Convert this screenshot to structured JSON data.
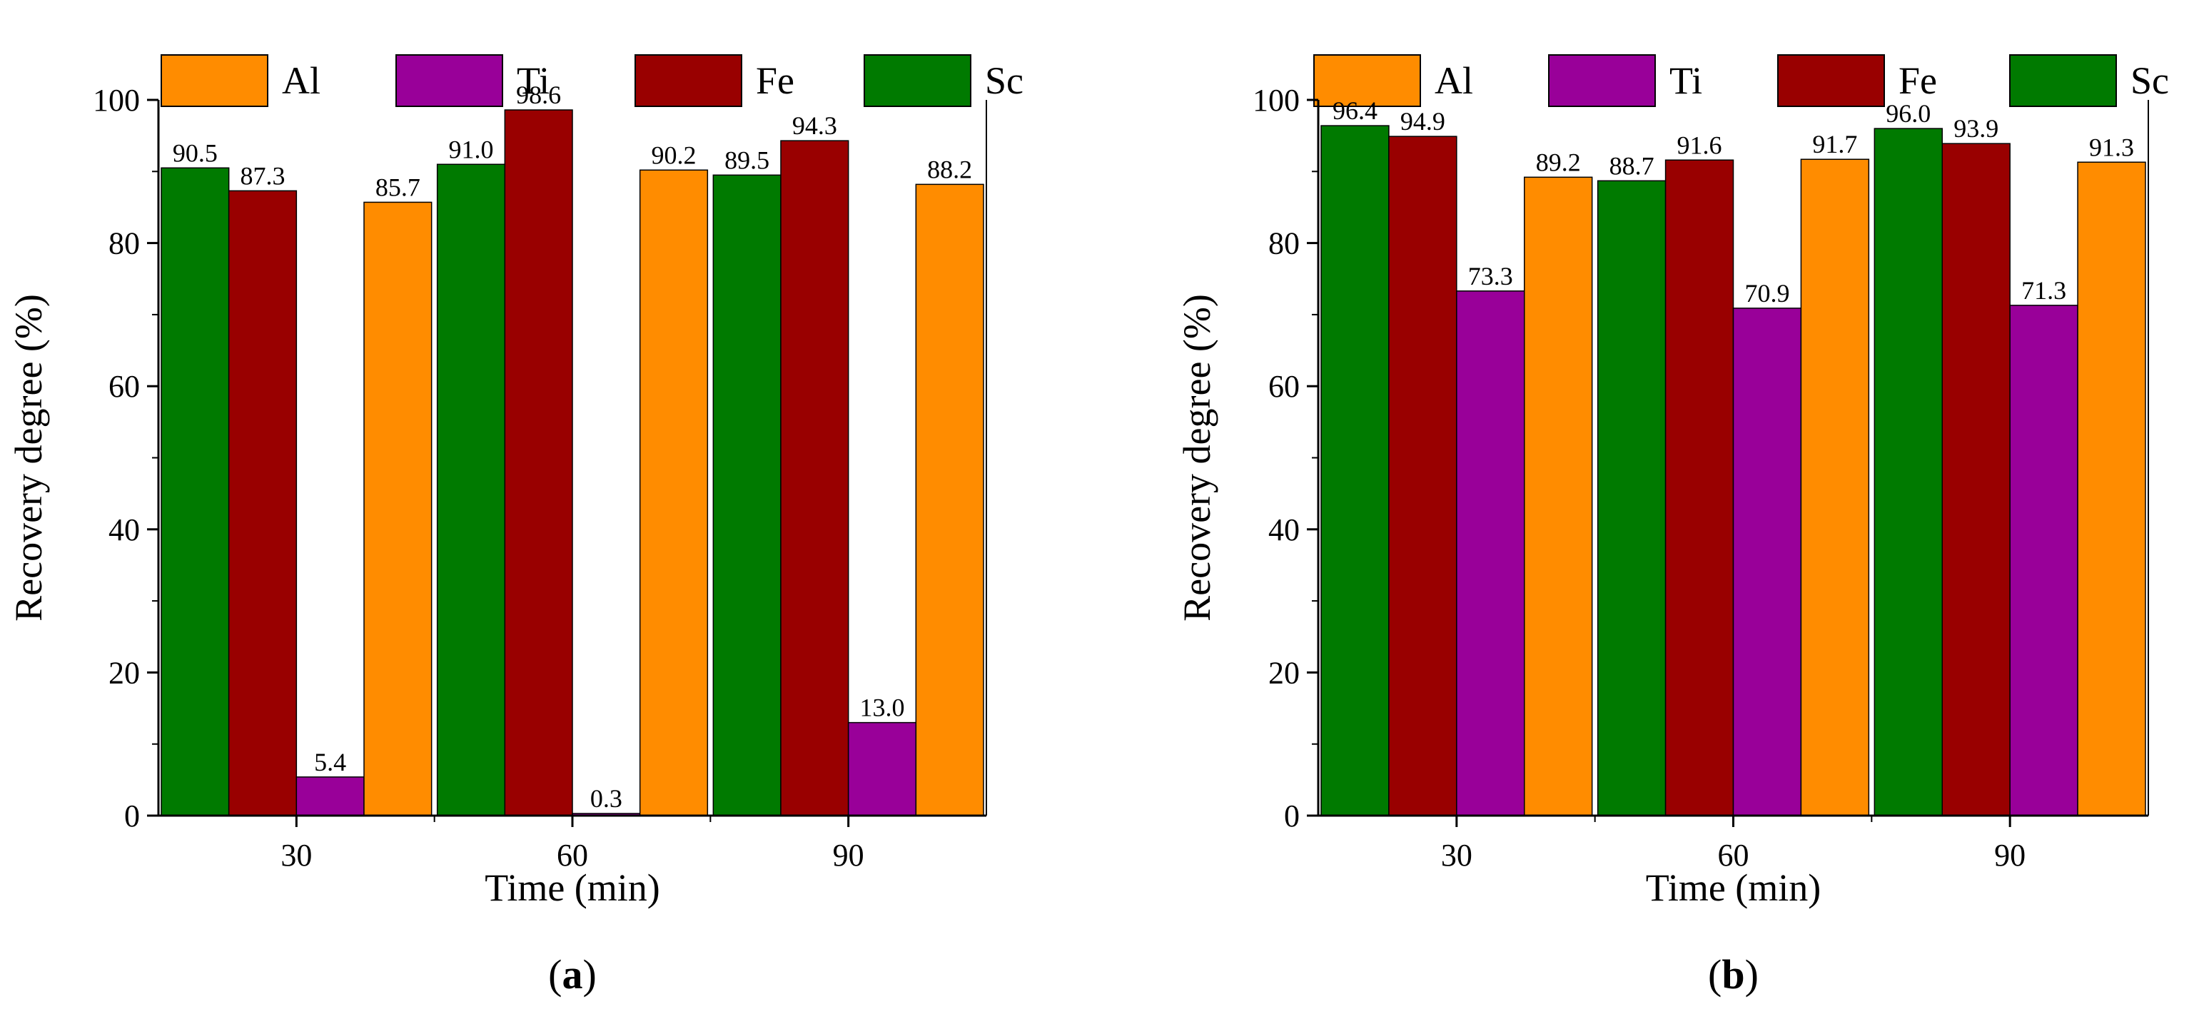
{
  "colors": {
    "Al": "#ff8c00",
    "Ti": "#990099",
    "Fe": "#990000",
    "Sc": "#007a00",
    "axis": "#000000",
    "bar_outline": "#000000",
    "background": "#ffffff"
  },
  "legend": {
    "items": [
      {
        "key": "Al",
        "label": "Al"
      },
      {
        "key": "Ti",
        "label": "Ti"
      },
      {
        "key": "Fe",
        "label": "Fe"
      },
      {
        "key": "Sc",
        "label": "Sc"
      }
    ]
  },
  "chart_data": [
    {
      "type": "bar",
      "panel_label": {
        "open": "(",
        "letter": "a",
        "close": ")"
      },
      "title": "",
      "xlabel": "Time (min)",
      "ylabel": "Recovery degree (%)",
      "ylim": [
        0,
        100
      ],
      "yticks": [
        0,
        20,
        40,
        60,
        80,
        100
      ],
      "categories": [
        "30",
        "60",
        "90"
      ],
      "legend_position": "top",
      "grid": false,
      "series": [
        {
          "name": "Sc",
          "values": [
            90.5,
            91.0,
            89.5
          ],
          "labels": [
            "90.5",
            "91.0",
            "89.5"
          ]
        },
        {
          "name": "Fe",
          "values": [
            87.3,
            98.6,
            94.3
          ],
          "labels": [
            "87.3",
            "98.6",
            "94.3"
          ]
        },
        {
          "name": "Ti",
          "values": [
            5.4,
            0.3,
            13.0
          ],
          "labels": [
            "5.4",
            "0.3",
            "13.0"
          ]
        },
        {
          "name": "Al",
          "values": [
            85.7,
            90.2,
            88.2
          ],
          "labels": [
            "85.7",
            "90.2",
            "88.2"
          ]
        }
      ]
    },
    {
      "type": "bar",
      "panel_label": {
        "open": "(",
        "letter": "b",
        "close": ")"
      },
      "title": "",
      "xlabel": "Time (min)",
      "ylabel": "Recovery degree (%)",
      "ylim": [
        0,
        100
      ],
      "yticks": [
        0,
        20,
        40,
        60,
        80,
        100
      ],
      "categories": [
        "30",
        "60",
        "90"
      ],
      "legend_position": "top",
      "grid": false,
      "series": [
        {
          "name": "Sc",
          "values": [
            96.4,
            88.7,
            96.0
          ],
          "labels": [
            "96.4",
            "88.7",
            "96.0"
          ]
        },
        {
          "name": "Fe",
          "values": [
            94.9,
            91.6,
            93.9
          ],
          "labels": [
            "94.9",
            "91.6",
            "93.9"
          ]
        },
        {
          "name": "Ti",
          "values": [
            73.3,
            70.9,
            71.3
          ],
          "labels": [
            "73.3",
            "70.9",
            "71.3"
          ]
        },
        {
          "name": "Al",
          "values": [
            89.2,
            91.7,
            91.3
          ],
          "labels": [
            "89.2",
            "91.7",
            "91.3"
          ]
        }
      ]
    }
  ]
}
